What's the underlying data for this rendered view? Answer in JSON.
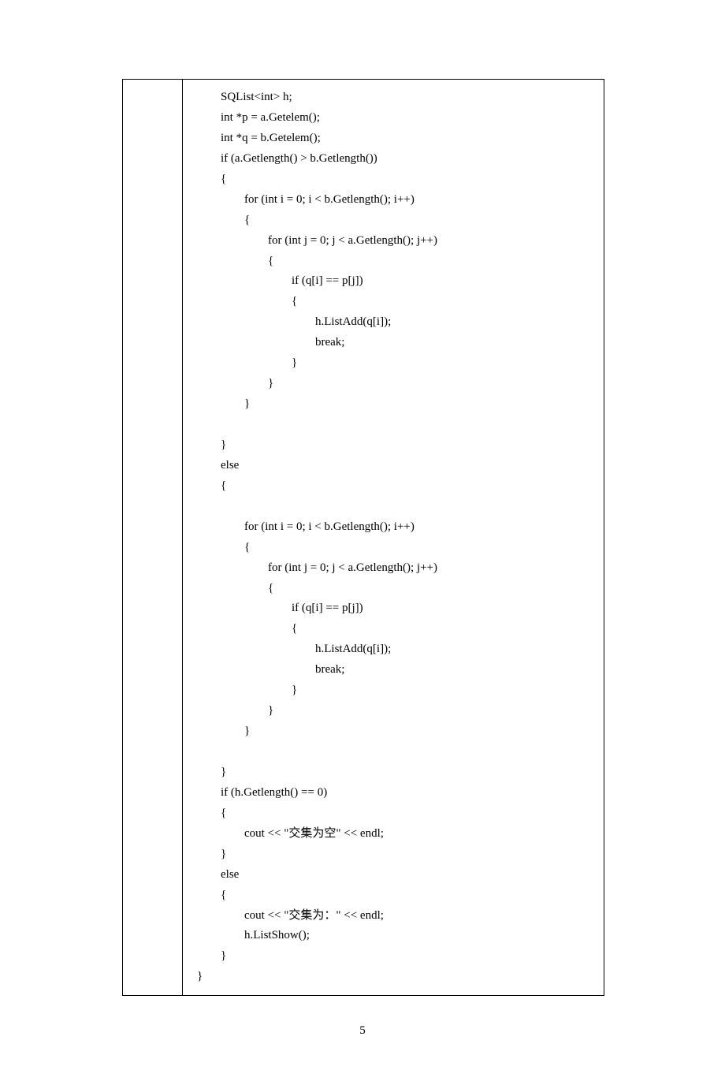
{
  "page_number": "5",
  "code_lines": [
    "        SQList<int> h;",
    "        int *p = a.Getelem();",
    "        int *q = b.Getelem();",
    "        if (a.Getlength() > b.Getlength())",
    "        {",
    "                for (int i = 0; i < b.Getlength(); i++)",
    "                {",
    "                        for (int j = 0; j < a.Getlength(); j++)",
    "                        {",
    "                                if (q[i] == p[j])",
    "                                {",
    "                                        h.ListAdd(q[i]);",
    "                                        break;",
    "                                }",
    "                        }",
    "                }",
    "",
    "        }",
    "        else",
    "        {",
    "",
    "                for (int i = 0; i < b.Getlength(); i++)",
    "                {",
    "                        for (int j = 0; j < a.Getlength(); j++)",
    "                        {",
    "                                if (q[i] == p[j])",
    "                                {",
    "                                        h.ListAdd(q[i]);",
    "                                        break;",
    "                                }",
    "                        }",
    "                }",
    "",
    "        }",
    "        if (h.Getlength() == 0)",
    "        {",
    "                cout << \"交集为空\" << endl;",
    "        }",
    "        else",
    "        {",
    "                cout << \"交集为：\" << endl;",
    "                h.ListShow();",
    "        }",
    "}"
  ]
}
